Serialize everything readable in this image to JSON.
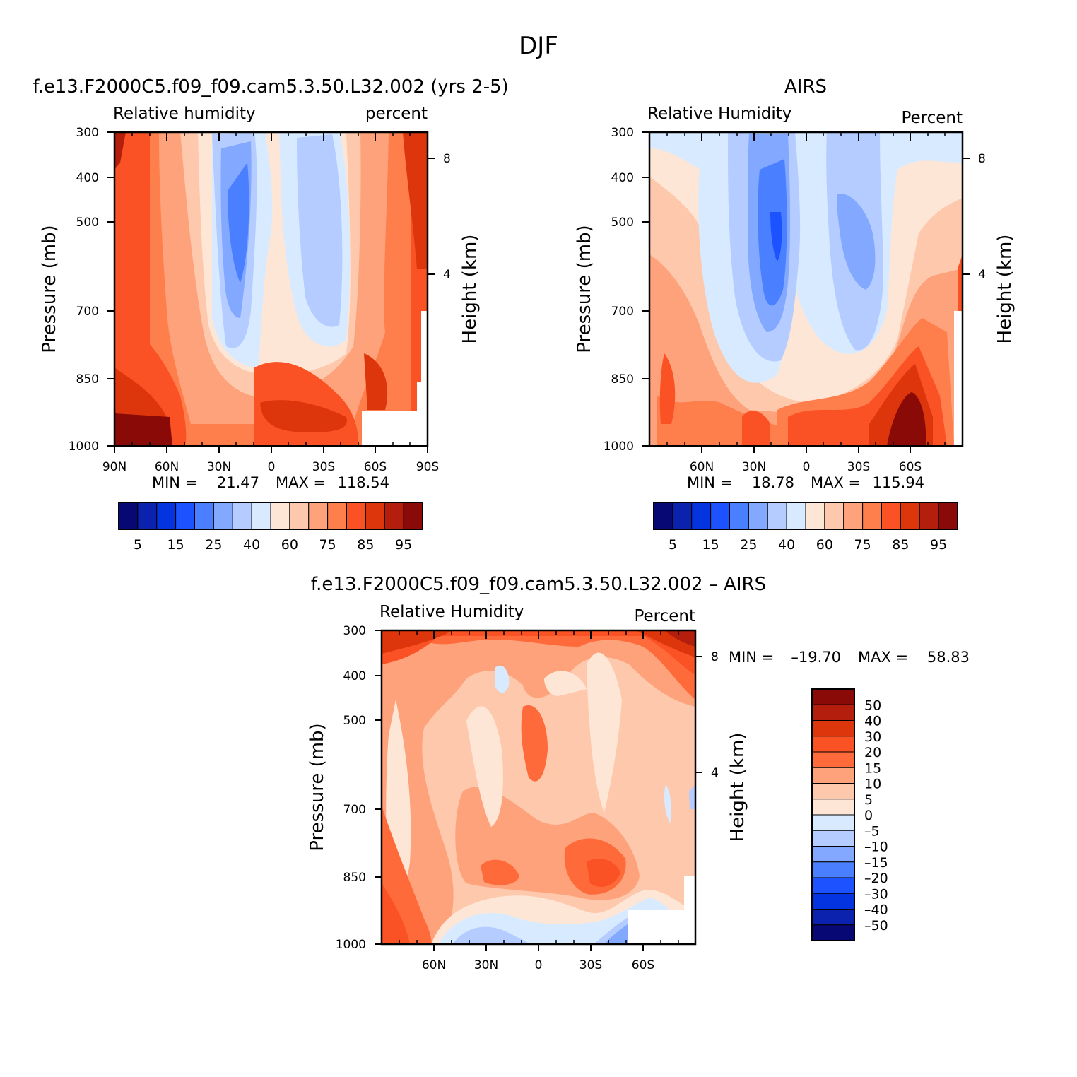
{
  "page_title": "DJF",
  "palette_rh": [
    "#080874",
    "#0a22ae",
    "#0434e0",
    "#1c52ff",
    "#4a80ff",
    "#82a8ff",
    "#b4ccff",
    "#d8eaff",
    "#fee6d6",
    "#fec8ac",
    "#fea27c",
    "#fe7e4c",
    "#fa5224",
    "#de360c",
    "#b41e0c",
    "#8a0a08"
  ],
  "palette_diff": [
    "#8a0a08",
    "#b41e0c",
    "#de360c",
    "#fa5224",
    "#fe6a3a",
    "#fea27c",
    "#fec8ac",
    "#fee6d6",
    "#d8eaff",
    "#b4ccff",
    "#82a8ff",
    "#4a80ff",
    "#1c52ff",
    "#0434e0",
    "#0a22ae",
    "#080874"
  ],
  "chart_data": [
    {
      "type": "heatmap",
      "title": "f.e13.F2000C5.f09_f09.cam5.3.50.L32.002 (yrs 2-5)",
      "left_label": "Relative humidity",
      "right_label": "percent",
      "ylabel": "Pressure (mb)",
      "ylabel_right": "Height (km)",
      "x_ticks": [
        "90N",
        "60N",
        "30N",
        "0",
        "30S",
        "60S",
        "90S"
      ],
      "y_ticks": [
        "300",
        "400",
        "500",
        "700",
        "850",
        "1000"
      ],
      "height_ticks": [
        "8",
        "4"
      ],
      "stats": {
        "min_label": "MIN =",
        "min": "21.47",
        "max_label": "MAX =",
        "max": "118.54"
      },
      "colorbar_labels": [
        "5",
        "15",
        "25",
        "40",
        "60",
        "75",
        "85",
        "95"
      ],
      "x_range": [
        -90,
        90
      ],
      "y_range": [
        1000,
        300
      ],
      "color_levels": 16
    },
    {
      "type": "heatmap",
      "title": "AIRS",
      "left_label": "Relative Humidity",
      "right_label": "Percent",
      "ylabel": "Pressure (mb)",
      "ylabel_right": "Height (km)",
      "x_ticks": [
        "60N",
        "30N",
        "0",
        "30S",
        "60S"
      ],
      "y_ticks": [
        "300",
        "400",
        "500",
        "700",
        "850",
        "1000"
      ],
      "height_ticks": [
        "8",
        "4"
      ],
      "stats": {
        "min_label": "MIN =",
        "min": "18.78",
        "max_label": "MAX =",
        "max": "115.94"
      },
      "colorbar_labels": [
        "5",
        "15",
        "25",
        "40",
        "60",
        "75",
        "85",
        "95"
      ],
      "x_range": [
        -90,
        90
      ],
      "y_range": [
        1000,
        300
      ],
      "color_levels": 16
    },
    {
      "type": "heatmap",
      "title": "f.e13.F2000C5.f09_f09.cam5.3.50.L32.002 – AIRS",
      "left_label": "Relative Humidity",
      "right_label": "Percent",
      "ylabel": "Pressure (mb)",
      "ylabel_right": "Height (km)",
      "x_ticks": [
        "60N",
        "30N",
        "0",
        "30S",
        "60S"
      ],
      "y_ticks": [
        "300",
        "400",
        "500",
        "700",
        "850",
        "1000"
      ],
      "height_ticks": [
        "8",
        "4"
      ],
      "stats": {
        "min_label": "MIN =",
        "min": "–19.70",
        "max_label": "MAX =",
        "max": "58.83"
      },
      "colorbar_labels": [
        "50",
        "40",
        "30",
        "20",
        "15",
        "10",
        "5",
        "0",
        "–5",
        "–10",
        "–15",
        "–20",
        "–30",
        "–40",
        "–50"
      ],
      "x_range": [
        -90,
        90
      ],
      "y_range": [
        1000,
        300
      ],
      "color_levels": 16
    }
  ]
}
